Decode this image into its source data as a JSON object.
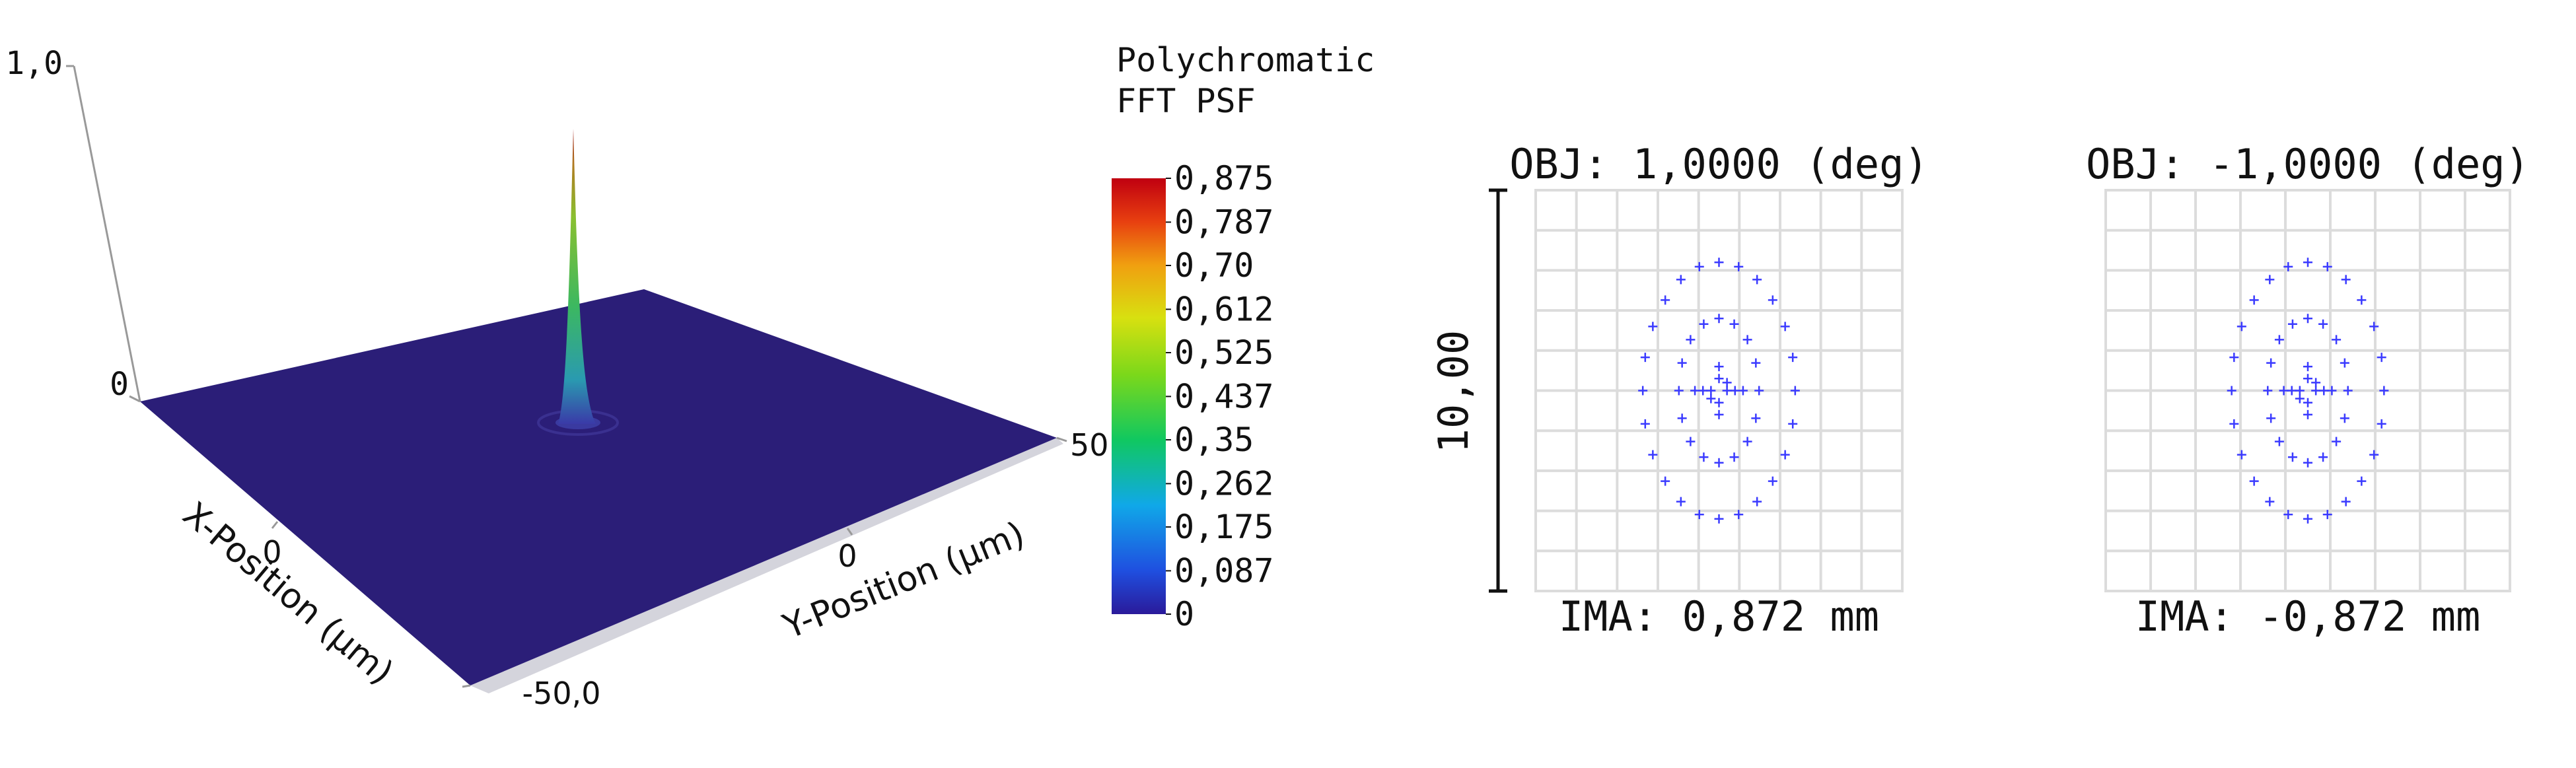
{
  "psf": {
    "z_axis": {
      "ticks": [
        {
          "value": 1,
          "label": "1,0"
        },
        0
      ]
    },
    "x_axis": {
      "label": "X-Position (µm)",
      "ticks": [
        0,
        {
          "value": -50,
          "label": "-50,0"
        }
      ]
    },
    "y_axis": {
      "label": "Y-Position (µm)",
      "ticks": [
        0,
        50
      ]
    }
  },
  "colorbar": {
    "title": [
      "Polychromatic",
      "FFT PSF"
    ],
    "ticks": [
      {
        "value": 0.875,
        "label": "0,875"
      },
      {
        "value": 0.787,
        "label": "0,787"
      },
      {
        "value": 0.7,
        "label": "0,70"
      },
      {
        "value": 0.612,
        "label": "0,612"
      },
      {
        "value": 0.525,
        "label": "0,525"
      },
      {
        "value": 0.437,
        "label": "0,437"
      },
      {
        "value": 0.35,
        "label": "0,35"
      },
      {
        "value": 0.262,
        "label": "0,262"
      },
      {
        "value": 0.175,
        "label": "0,175"
      },
      {
        "value": 0.087,
        "label": "0,087"
      },
      0
    ]
  },
  "scale_bar": {
    "value": 10,
    "label": "10,00"
  },
  "spots": [
    {
      "obj": "OBJ: 1,0000 (deg)",
      "ima": "IMA: 0,872 mm",
      "points": [
        [
          1.9,
          0
        ],
        [
          1.84,
          0.83
        ],
        [
          1.65,
          1.6
        ],
        [
          1.34,
          2.26
        ],
        [
          0.95,
          2.77
        ],
        [
          0.49,
          3.09
        ],
        [
          0,
          3.2
        ],
        [
          -0.49,
          3.09
        ],
        [
          -0.95,
          2.77
        ],
        [
          -1.34,
          2.26
        ],
        [
          -1.65,
          1.6
        ],
        [
          -1.84,
          0.83
        ],
        [
          -1.9,
          0
        ],
        [
          -1.84,
          -0.83
        ],
        [
          -1.65,
          -1.6
        ],
        [
          -1.34,
          -2.26
        ],
        [
          -0.95,
          -2.77
        ],
        [
          -0.49,
          -3.09
        ],
        [
          0,
          -3.2
        ],
        [
          0.49,
          -3.09
        ],
        [
          0.95,
          -2.77
        ],
        [
          1.34,
          -2.26
        ],
        [
          1.65,
          -1.6
        ],
        [
          1.84,
          -0.83
        ],
        [
          1,
          0
        ],
        [
          0.92,
          0.69
        ],
        [
          0.71,
          1.27
        ],
        [
          0.38,
          1.66
        ],
        [
          0,
          1.8
        ],
        [
          -0.38,
          1.66
        ],
        [
          -0.71,
          1.27
        ],
        [
          -0.92,
          0.69
        ],
        [
          -1,
          0
        ],
        [
          -0.92,
          -0.69
        ],
        [
          -0.71,
          -1.27
        ],
        [
          -0.38,
          -1.66
        ],
        [
          0,
          -1.8
        ],
        [
          0.38,
          -1.66
        ],
        [
          0.71,
          -1.27
        ],
        [
          0.92,
          -0.69
        ],
        [
          0.6,
          0
        ],
        [
          0.4,
          0
        ],
        [
          0.2,
          0
        ],
        [
          -0.2,
          0
        ],
        [
          -0.4,
          0
        ],
        [
          -0.6,
          0
        ],
        [
          0,
          0.6
        ],
        [
          0,
          0.3
        ],
        [
          0,
          -0.3
        ],
        [
          0,
          -0.6
        ],
        [
          0.2,
          0.2
        ],
        [
          -0.2,
          -0.2
        ]
      ]
    },
    {
      "obj": "OBJ: -1,0000 (deg)",
      "ima": "IMA: -0,872 mm",
      "points": [
        [
          1.9,
          0
        ],
        [
          1.84,
          0.83
        ],
        [
          1.65,
          1.6
        ],
        [
          1.34,
          2.26
        ],
        [
          0.95,
          2.77
        ],
        [
          0.49,
          3.09
        ],
        [
          0,
          3.2
        ],
        [
          -0.49,
          3.09
        ],
        [
          -0.95,
          2.77
        ],
        [
          -1.34,
          2.26
        ],
        [
          -1.65,
          1.6
        ],
        [
          -1.84,
          0.83
        ],
        [
          -1.9,
          0
        ],
        [
          -1.84,
          -0.83
        ],
        [
          -1.65,
          -1.6
        ],
        [
          -1.34,
          -2.26
        ],
        [
          -0.95,
          -2.77
        ],
        [
          -0.49,
          -3.09
        ],
        [
          0,
          -3.2
        ],
        [
          0.49,
          -3.09
        ],
        [
          0.95,
          -2.77
        ],
        [
          1.34,
          -2.26
        ],
        [
          1.65,
          -1.6
        ],
        [
          1.84,
          -0.83
        ],
        [
          1,
          0
        ],
        [
          0.92,
          0.69
        ],
        [
          0.71,
          1.27
        ],
        [
          0.38,
          1.66
        ],
        [
          0,
          1.8
        ],
        [
          -0.38,
          1.66
        ],
        [
          -0.71,
          1.27
        ],
        [
          -0.92,
          0.69
        ],
        [
          -1,
          0
        ],
        [
          -0.92,
          -0.69
        ],
        [
          -0.71,
          -1.27
        ],
        [
          -0.38,
          -1.66
        ],
        [
          0,
          -1.8
        ],
        [
          0.38,
          -1.66
        ],
        [
          0.71,
          -1.27
        ],
        [
          0.92,
          -0.69
        ],
        [
          0.6,
          0
        ],
        [
          0.4,
          0
        ],
        [
          0.2,
          0
        ],
        [
          -0.2,
          0
        ],
        [
          -0.4,
          0
        ],
        [
          -0.6,
          0
        ],
        [
          0,
          0.6
        ],
        [
          0,
          0.3
        ],
        [
          0,
          -0.3
        ],
        [
          0,
          -0.6
        ],
        [
          0.2,
          0.2
        ],
        [
          -0.2,
          -0.2
        ]
      ]
    }
  ]
}
